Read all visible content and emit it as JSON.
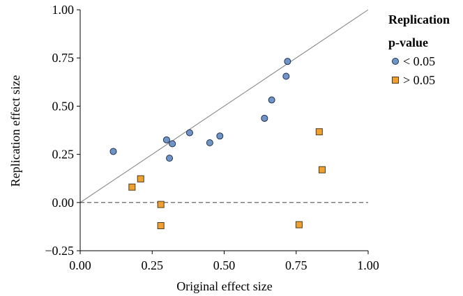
{
  "chart_data": {
    "type": "scatter",
    "xlabel": "Original effect size",
    "ylabel": "Replication effect size",
    "xlim": [
      0.0,
      1.0
    ],
    "ylim": [
      -0.25,
      1.0
    ],
    "x_ticks": [
      "0.00",
      "0.25",
      "0.50",
      "0.75",
      "1.00"
    ],
    "y_ticks": [
      "−0.25",
      "0.00",
      "0.25",
      "0.50",
      "0.75",
      "1.00"
    ],
    "x_tick_values": [
      0,
      0.25,
      0.5,
      0.75,
      1.0
    ],
    "y_tick_values": [
      -0.25,
      0,
      0.25,
      0.5,
      0.75,
      1.0
    ],
    "grid": false,
    "reference_lines": [
      {
        "kind": "identity",
        "style": "solid",
        "color": "#808080"
      },
      {
        "kind": "horizontal",
        "y": 0,
        "style": "dashed",
        "color": "#404040"
      }
    ],
    "legend": {
      "title_line1": "Replication",
      "title_line2": "p-value",
      "placement": "right"
    },
    "series": [
      {
        "name": "< 0.05",
        "marker": "circle",
        "color": "#6f95c8",
        "points": [
          {
            "x": 0.115,
            "y": 0.265
          },
          {
            "x": 0.3,
            "y": 0.325
          },
          {
            "x": 0.31,
            "y": 0.23
          },
          {
            "x": 0.32,
            "y": 0.305
          },
          {
            "x": 0.38,
            "y": 0.362
          },
          {
            "x": 0.45,
            "y": 0.31
          },
          {
            "x": 0.485,
            "y": 0.345
          },
          {
            "x": 0.64,
            "y": 0.437
          },
          {
            "x": 0.665,
            "y": 0.532
          },
          {
            "x": 0.715,
            "y": 0.655
          },
          {
            "x": 0.72,
            "y": 0.732
          }
        ]
      },
      {
        "name": "> 0.05",
        "marker": "square",
        "color": "#f0a030",
        "points": [
          {
            "x": 0.18,
            "y": 0.08
          },
          {
            "x": 0.21,
            "y": 0.123
          },
          {
            "x": 0.28,
            "y": -0.01
          },
          {
            "x": 0.28,
            "y": -0.12
          },
          {
            "x": 0.76,
            "y": -0.115
          },
          {
            "x": 0.83,
            "y": 0.367
          },
          {
            "x": 0.84,
            "y": 0.17
          }
        ]
      }
    ]
  }
}
